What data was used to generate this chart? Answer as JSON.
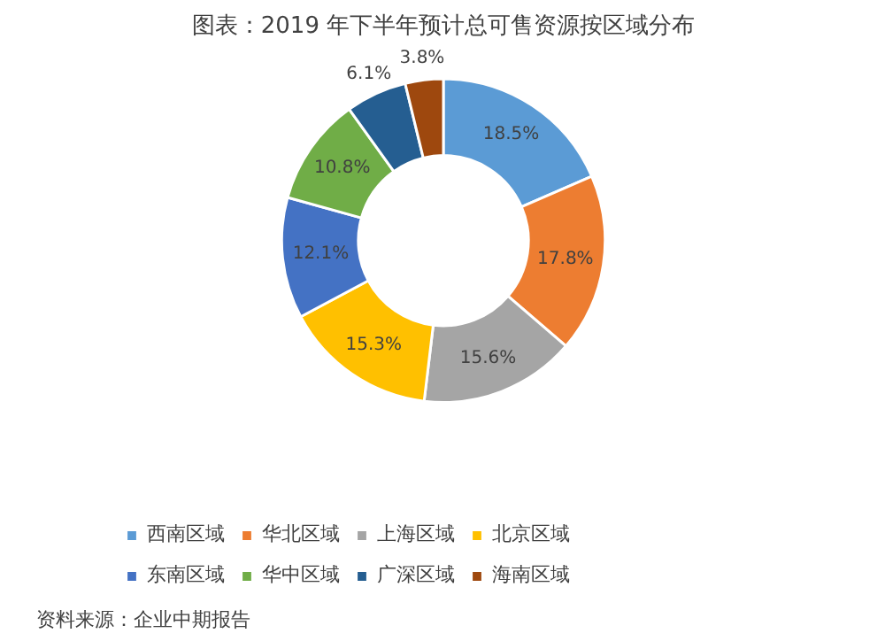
{
  "chart_data": {
    "type": "donut",
    "title": "图表：2019 年下半年预计总可售资源按区域分布",
    "categories": [
      "西南区域",
      "华北区域",
      "上海区域",
      "北京区域",
      "东南区域",
      "华中区域",
      "广深区域",
      "海南区域"
    ],
    "values": [
      18.5,
      17.8,
      15.6,
      15.3,
      12.1,
      10.8,
      6.1,
      3.8
    ],
    "value_labels": [
      "18.5%",
      "17.8%",
      "15.6%",
      "15.3%",
      "12.1%",
      "10.8%",
      "6.1%",
      "3.8%"
    ],
    "colors": [
      "#5b9bd5",
      "#ed7d31",
      "#a5a5a5",
      "#ffc000",
      "#4472c4",
      "#70ad47",
      "#255e91",
      "#9e480e"
    ],
    "legend": "bottom",
    "annotations": [
      "资料来源：企业中期报告"
    ]
  }
}
